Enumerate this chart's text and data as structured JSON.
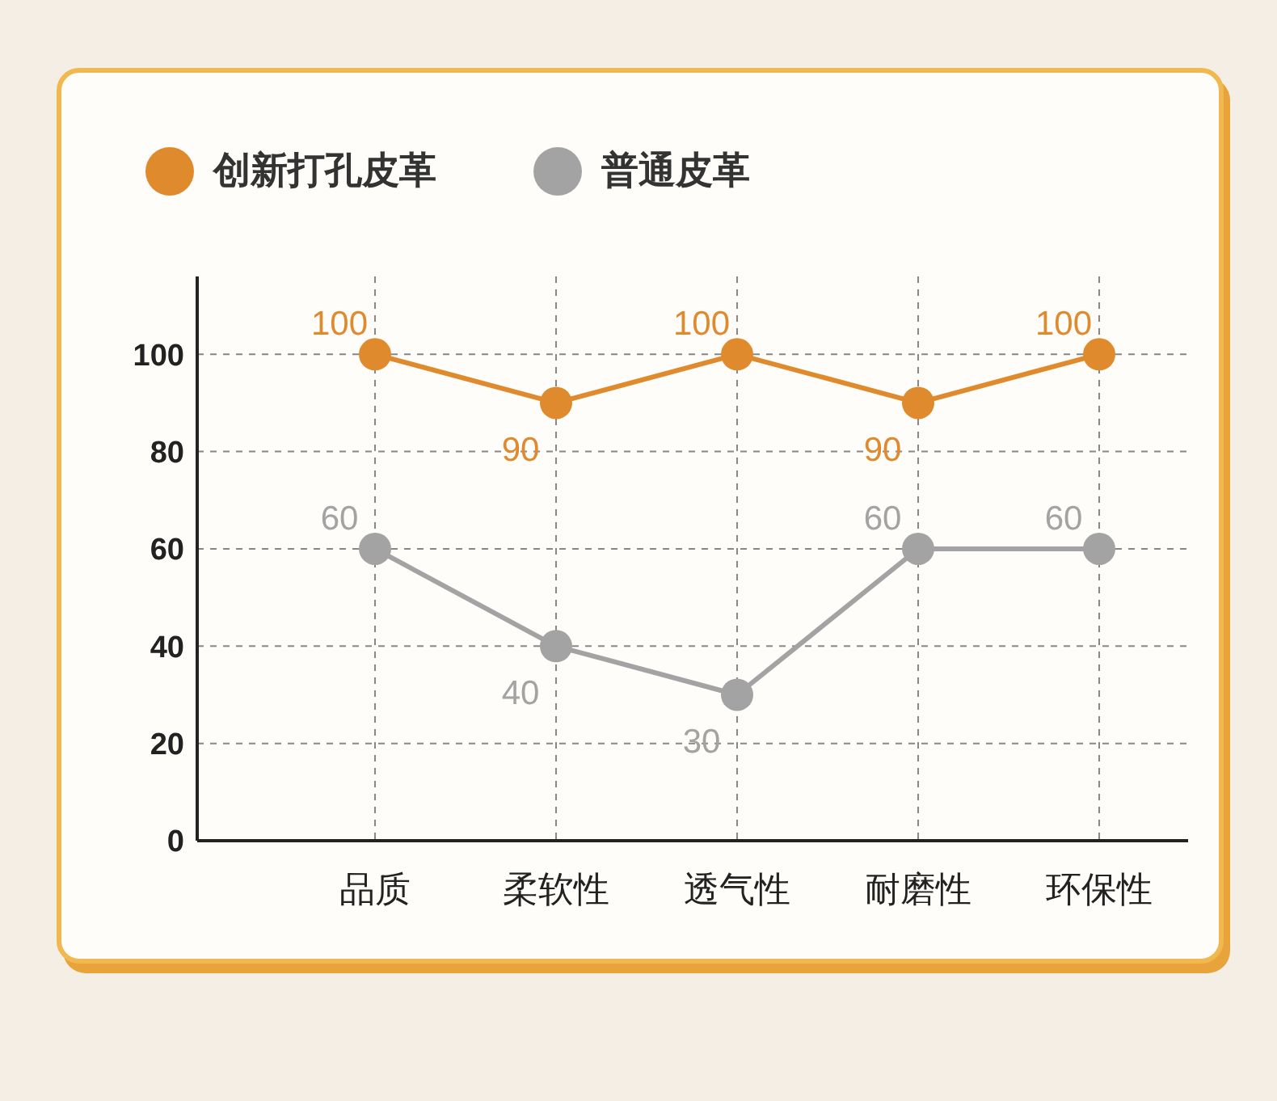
{
  "chart_data": {
    "type": "line",
    "categories": [
      "品质",
      "柔软性",
      "透气性",
      "耐磨性",
      "环保性"
    ],
    "series": [
      {
        "name": "创新打孔皮革",
        "color": "#e08a2e",
        "values": [
          100,
          90,
          100,
          90,
          100
        ]
      },
      {
        "name": "普通皮革",
        "color": "#a3a3a3",
        "values": [
          60,
          40,
          30,
          60,
          60
        ]
      }
    ],
    "ylim": [
      0,
      116
    ],
    "yticks": [
      0,
      20,
      40,
      60,
      80,
      100
    ],
    "grid": true,
    "legend": "top left",
    "marker": "circle",
    "line_style": "solid",
    "data_labels": true
  }
}
